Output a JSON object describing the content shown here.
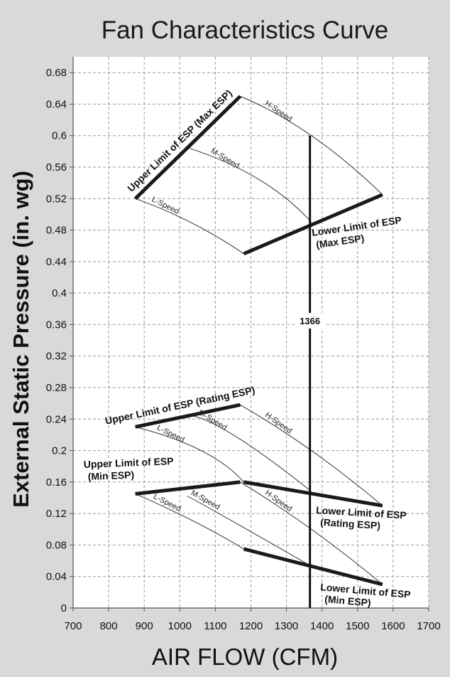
{
  "chart_data": {
    "type": "line",
    "title": "Fan Characteristics Curve",
    "xlabel": "AIR FLOW  (CFM)",
    "ylabel": "External Static Pressure (in. wg)",
    "xlim": [
      700,
      1700
    ],
    "ylim": [
      0,
      0.7
    ],
    "xticks": [
      "700",
      "800",
      "900",
      "1000",
      "1100",
      "1200",
      "1300",
      "1400",
      "1500",
      "1600",
      "1700"
    ],
    "yticks": [
      "0",
      "0.04",
      "0.08",
      "0.12",
      "0.16",
      "0.2",
      "0.24",
      "0.28",
      "0.32",
      "0.36",
      "0.4",
      "0.44",
      "0.48",
      "0.52",
      "0.56",
      "0.6",
      "0.64",
      "0.68"
    ],
    "grid": true,
    "fan_curves": [
      {
        "name": "H-Speed",
        "x": [
          1170,
          1370,
          1570
        ],
        "y": [
          0.65,
          0.6,
          0.525
        ]
      },
      {
        "name": "M-Speed",
        "x": [
          1020,
          1220,
          1370
        ],
        "y": [
          0.585,
          0.545,
          0.49
        ]
      },
      {
        "name": "L-Speed",
        "x": [
          875,
          1030,
          1180
        ],
        "y": [
          0.52,
          0.49,
          0.45
        ]
      },
      {
        "name": "H-Speed",
        "x": [
          1170,
          1370,
          1570
        ],
        "y": [
          0.258,
          0.2,
          0.13
        ]
      },
      {
        "name": "M-Speed",
        "x": [
          1020,
          1150,
          1370
        ],
        "y": [
          0.245,
          0.22,
          0.148
        ]
      },
      {
        "name": "L-Speed",
        "x": [
          875,
          1060,
          1180
        ],
        "y": [
          0.23,
          0.2,
          0.16
        ]
      },
      {
        "name": "H-Speed",
        "x": [
          1170,
          1370,
          1570
        ],
        "y": [
          0.16,
          0.1,
          0.03
        ]
      },
      {
        "name": "M-Speed",
        "x": [
          1020,
          1110,
          1370
        ],
        "y": [
          0.142,
          0.12,
          0.053
        ]
      },
      {
        "name": "L-Speed",
        "x": [
          875,
          1040,
          1180
        ],
        "y": [
          0.145,
          0.11,
          0.075
        ]
      }
    ],
    "limit_lines": [
      {
        "label": [
          "Upper Limit of ESP (Max ESP)"
        ],
        "x": [
          875,
          1170
        ],
        "y": [
          0.52,
          0.65
        ]
      },
      {
        "label": [
          "Lower Limit of ESP",
          "(Max ESP)"
        ],
        "x": [
          1180,
          1570
        ],
        "y": [
          0.45,
          0.525
        ]
      },
      {
        "label": [
          "Upper Limit of ESP (Rating ESP)"
        ],
        "x": [
          875,
          1170
        ],
        "y": [
          0.23,
          0.258
        ]
      },
      {
        "label": [
          "Lower Limit of ESP",
          "(Rating ESP)"
        ],
        "x": [
          1180,
          1570
        ],
        "y": [
          0.16,
          0.13
        ]
      },
      {
        "label": [
          "Upper Limit of ESP",
          "(Min ESP)"
        ],
        "x": [
          875,
          1170
        ],
        "y": [
          0.145,
          0.16
        ]
      },
      {
        "label": [
          "Lower Limit of ESP",
          "(Min ESP)"
        ],
        "x": [
          1180,
          1570
        ],
        "y": [
          0.075,
          0.03
        ]
      }
    ],
    "marker": {
      "label": "1366",
      "x": 1366,
      "y": [
        0,
        0.6
      ]
    }
  }
}
